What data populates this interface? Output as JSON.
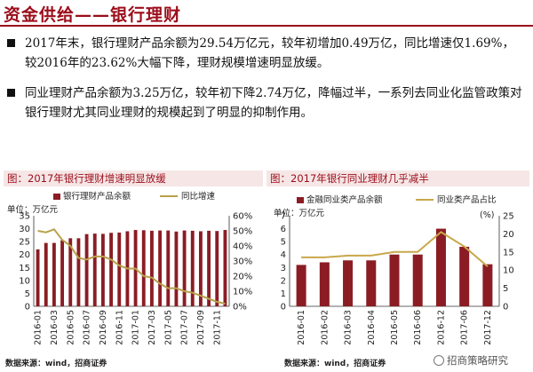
{
  "page": {
    "title": "资金供给——银行理财",
    "bullets": [
      "2017年末，银行理财产品余额为29.54万亿元，较年初增加0.49万亿，同比增速仅1.69%，较2016年的23.62%大幅下降，理财规模增速明显放缓。",
      "同业理财产品余额为3.25万亿，较年初下降2.74万亿，降幅过半，一系列去同业化监管政策对银行理财尤其同业理财的规模起到了明显的抑制作用。"
    ],
    "watermark": "招商策略研究"
  },
  "chart_data": [
    {
      "type": "bar+line",
      "title": "图：2017年银行理财增速明显放缓",
      "unit": "单位：万亿元",
      "source": "数据来源：wind，招商证券",
      "categories": [
        "2016-01",
        "2016-02",
        "2016-03",
        "2016-04",
        "2016-05",
        "2016-06",
        "2016-07",
        "2016-08",
        "2016-09",
        "2016-10",
        "2016-11",
        "2016-12",
        "2017-01",
        "2017-02",
        "2017-03",
        "2017-04",
        "2017-05",
        "2017-06",
        "2017-07",
        "2017-08",
        "2017-09",
        "2017-10",
        "2017-11",
        "2017-12"
      ],
      "x_tick_labels": [
        "2016-01",
        "2016-03",
        "2016-05",
        "2016-07",
        "2016-09",
        "2016-11",
        "2017-01",
        "2017-03",
        "2017-05",
        "2017-07",
        "2017-09",
        "2017-11"
      ],
      "series": [
        {
          "name": "银行理财产品余额",
          "axis": "left",
          "kind": "bar",
          "color": "#8b1c24",
          "values": [
            22.0,
            24.5,
            24.5,
            25.5,
            26.3,
            26.3,
            27.9,
            28.1,
            28.0,
            28.4,
            28.5,
            29.0,
            29.5,
            29.4,
            29.2,
            29.3,
            29.3,
            28.9,
            29.3,
            29.2,
            29.0,
            29.2,
            29.1,
            29.5
          ]
        },
        {
          "name": "同比增速",
          "axis": "right",
          "kind": "line",
          "color": "#b8a14a",
          "values": [
            50.0,
            49.0,
            51.0,
            44.0,
            40.0,
            32.0,
            31.0,
            33.0,
            33.0,
            31.0,
            27.0,
            25.0,
            25.0,
            20.0,
            19.0,
            15.0,
            12.0,
            12.0,
            10.0,
            9.0,
            7.0,
            5.0,
            3.0,
            1.7
          ]
        }
      ],
      "y_left": {
        "min": 0,
        "max": 35,
        "ticks": [
          0,
          5,
          10,
          15,
          20,
          25,
          30,
          35
        ]
      },
      "y_right": {
        "min": 0,
        "max": 60,
        "ticks": [
          "0%",
          "10%",
          "20%",
          "30%",
          "40%",
          "50%",
          "60%"
        ]
      },
      "legend": "top"
    },
    {
      "type": "bar+line",
      "title": "图：2017年银行同业理财几乎减半",
      "unit": "单位：万亿元",
      "right_unit": "(%)",
      "source": "数据来源：wind，招商证券",
      "categories": [
        "2016-01",
        "2016-02",
        "2016-03",
        "2016-04",
        "2016-05",
        "2016-06",
        "2016-12",
        "2017-06",
        "2017-12"
      ],
      "series": [
        {
          "name": "金融同业类产品余额",
          "axis": "left",
          "kind": "bar",
          "color": "#8b1c24",
          "values": [
            3.2,
            3.4,
            3.55,
            3.55,
            4.0,
            4.0,
            6.0,
            4.6,
            3.25
          ]
        },
        {
          "name": "同业类产品占比",
          "axis": "right",
          "kind": "line",
          "color": "#c9a84a",
          "values": [
            13.5,
            13.5,
            14.0,
            14.0,
            15.0,
            15.0,
            20.5,
            16.5,
            11.0
          ]
        }
      ],
      "y_left": {
        "min": 0,
        "max": 7,
        "ticks": [
          0,
          1,
          2,
          3,
          4,
          5,
          6,
          7
        ]
      },
      "y_right": {
        "min": 0,
        "max": 25,
        "ticks": [
          0,
          5,
          10,
          15,
          20,
          25
        ]
      },
      "legend": "top"
    }
  ]
}
